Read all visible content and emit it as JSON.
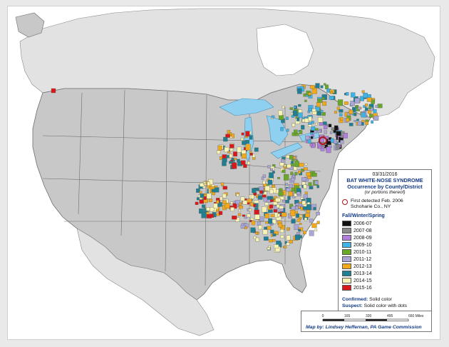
{
  "legend": {
    "date": "03/31/2016",
    "title_line1": "BAT WHITE-NOSE SYNDROME",
    "title_line2": "Occurrence by County/District",
    "subtitle": "(or portions thereof)",
    "first_detected_line1": "First detected Feb. 2006",
    "first_detected_line2": "Schoharie Co., NY",
    "season_heading": "Fall/Winter/Spring",
    "seasons": [
      {
        "label": "2006-07",
        "color": "#111111"
      },
      {
        "label": "2007-08",
        "color": "#8a8a8a"
      },
      {
        "label": "2008-09",
        "color": "#b07fd9"
      },
      {
        "label": "2009-10",
        "color": "#3fb2e6"
      },
      {
        "label": "2010-11",
        "color": "#6aa829"
      },
      {
        "label": "2011-12",
        "color": "#a9a6d6"
      },
      {
        "label": "2012-13",
        "color": "#f0a81c"
      },
      {
        "label": "2013-14",
        "color": "#1f7f93"
      },
      {
        "label": "2014-15",
        "color": "#f7f3b4"
      },
      {
        "label": "2015-16",
        "color": "#d7191c"
      }
    ],
    "confirmed_label": "Confirmed:",
    "confirmed_value": "Solid color",
    "suspect_label": "Suspect:",
    "suspect_value": "Solid color with dots"
  },
  "scale_bar": {
    "ticks": [
      "0",
      "165",
      "330",
      "495",
      "660 Miles"
    ]
  },
  "credit": "Map by: Lindsey Heffernan, PA Game Commission",
  "map_colors": {
    "land_us": "#c8c8c8",
    "land_other": "#e2e2e2",
    "water": "#c9ecf7",
    "lakes": "#8fd0f0",
    "borders": "#6e6e6e",
    "first_detected_ring": "#b01414"
  }
}
